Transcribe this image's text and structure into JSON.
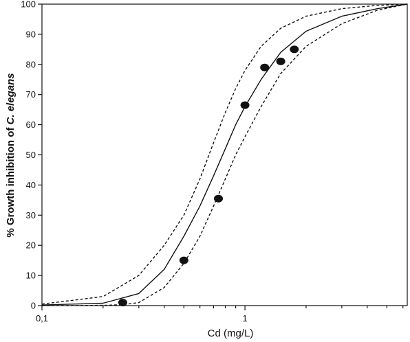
{
  "chart_data": {
    "type": "scatter",
    "title": "",
    "xlabel": "Cd  (mg/L)",
    "ylabel_prefix": "% Growth inhibition of ",
    "ylabel_italic": "C. elegans",
    "x_scale": "log",
    "xlim": [
      0.1,
      6.3
    ],
    "ylim": [
      0,
      100
    ],
    "x_ticks": [
      {
        "value": 0.1,
        "label": "0,1"
      },
      {
        "value": 1,
        "label": "1"
      }
    ],
    "y_ticks": [
      0,
      10,
      20,
      30,
      40,
      50,
      60,
      70,
      80,
      90,
      100
    ],
    "grid": false,
    "legend": "none",
    "series": [
      {
        "kind": "points",
        "x": [
          0.25,
          0.5,
          0.74,
          1.0,
          1.25,
          1.5,
          1.75
        ],
        "y": [
          1,
          15,
          35.5,
          66.5,
          79,
          81,
          85
        ]
      },
      {
        "kind": "fit",
        "x": [
          0.1,
          0.2,
          0.3,
          0.4,
          0.5,
          0.6,
          0.7,
          0.8,
          0.9,
          1.0,
          1.2,
          1.5,
          2.0,
          3.0,
          4.5,
          6.3
        ],
        "y": [
          0.2,
          0.8,
          4,
          12,
          23,
          33,
          43,
          52,
          60,
          66,
          75,
          84,
          91,
          96,
          98.5,
          100
        ]
      },
      {
        "kind": "ci-upper",
        "x": [
          0.1,
          0.2,
          0.3,
          0.4,
          0.5,
          0.6,
          0.7,
          0.8,
          0.9,
          1.0,
          1.2,
          1.5,
          2.0,
          3.0,
          4.5,
          6.3
        ],
        "y": [
          0.5,
          3,
          10,
          20,
          30,
          42,
          54,
          64,
          72,
          78,
          86,
          92,
          96,
          98.5,
          99.6,
          100
        ]
      },
      {
        "kind": "ci-lower",
        "x": [
          0.1,
          0.2,
          0.25,
          0.3,
          0.4,
          0.5,
          0.6,
          0.7,
          0.8,
          0.9,
          1.0,
          1.2,
          1.5,
          2.0,
          3.0,
          4.5,
          6.3
        ],
        "y": [
          0,
          0.1,
          0.3,
          1,
          6,
          14,
          23,
          33,
          42,
          50,
          56,
          66,
          77,
          86,
          93.5,
          98,
          100
        ]
      }
    ],
    "colors": {
      "ink": "#111111",
      "background": "#ffffff"
    }
  }
}
